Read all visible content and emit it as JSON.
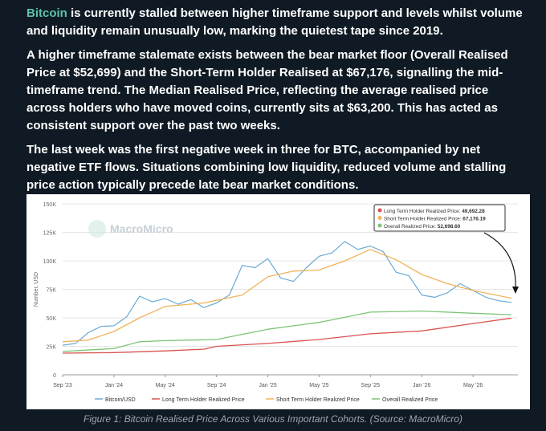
{
  "article": {
    "p1_link": "Bitcoin",
    "p1_rest": " is currently stalled between higher timeframe support and levels whilst volume and liquidity remain unusually low, marking the quietest tape since 2019.",
    "p2": "A higher timeframe stalemate exists between the bear market floor (Overall Realised Price at $52,699) and the Short-Term Holder Realised at $67,176, signalling the mid-timeframe trend. The Median Realised Price, reflecting the average realised price across holders who have moved coins, currently sits at $63,200. This has acted as consistent support over the past two weeks.",
    "p3": "The last week was the first negative week in three for BTC, accompanied by net negative ETF flows. Situations combining low liquidity, reduced volume and stalling price action typically precede late bear market conditions."
  },
  "caption": "Figure 1: Bitcoin Realised Price Across Various Important Cohorts. (Source: MacroMicro)",
  "watermark": "MacroMicro",
  "colors": {
    "background": "#0f1a24",
    "link": "#5dc2a9",
    "btc": "#6aaad4",
    "lth": "#d9534f",
    "sth": "#f0b35a",
    "overall": "#7cc576"
  },
  "chart_data": {
    "type": "line",
    "ylabel": "Number, USD",
    "ylim": [
      0,
      150000
    ],
    "y_ticks": [
      "0",
      "25K",
      "50K",
      "75K",
      "100K",
      "125K",
      "150K"
    ],
    "x_ticks": [
      "Sep '23",
      "Jan '24",
      "May '24",
      "Sep '24",
      "Jan '25",
      "May '25",
      "Sep '25",
      "Jan '26",
      "May '26"
    ],
    "x_tick_dates": [
      "2023-09",
      "2024-01",
      "2024-05",
      "2024-09",
      "2025-01",
      "2025-05",
      "2025-09",
      "2026-01",
      "2026-05"
    ],
    "grid": true,
    "legend": "bottom",
    "tooltip": [
      {
        "label": "Long Term Holder Realized Price: ",
        "value": "49,692.28",
        "color": "#d9534f"
      },
      {
        "label": "Short Term Holder Realized Price: ",
        "value": "67,176.19",
        "color": "#f0b35a"
      },
      {
        "label": "Overall Realized Price: ",
        "value": "52,698.60",
        "color": "#7cc576"
      }
    ],
    "series": [
      {
        "name": "Bitcoin/USD",
        "color": "#6aaad4",
        "points": [
          [
            "2023-09",
            26000
          ],
          [
            "2023-10",
            27500
          ],
          [
            "2023-11",
            37000
          ],
          [
            "2023-12",
            42500
          ],
          [
            "2024-01",
            43000
          ],
          [
            "2024-02",
            51000
          ],
          [
            "2024-03",
            69000
          ],
          [
            "2024-04",
            64000
          ],
          [
            "2024-05",
            67000
          ],
          [
            "2024-06",
            62000
          ],
          [
            "2024-07",
            66000
          ],
          [
            "2024-08",
            59000
          ],
          [
            "2024-09",
            63000
          ],
          [
            "2024-10",
            70000
          ],
          [
            "2024-11",
            96000
          ],
          [
            "2024-12",
            94000
          ],
          [
            "2025-01",
            102000
          ],
          [
            "2025-02",
            85000
          ],
          [
            "2025-03",
            82000
          ],
          [
            "2025-04",
            94000
          ],
          [
            "2025-05",
            104000
          ],
          [
            "2025-06",
            107000
          ],
          [
            "2025-07",
            117000
          ],
          [
            "2025-08",
            110000
          ],
          [
            "2025-09",
            113000
          ],
          [
            "2025-10",
            108000
          ],
          [
            "2025-11",
            90000
          ],
          [
            "2025-12",
            87000
          ],
          [
            "2026-01",
            70000
          ],
          [
            "2026-02",
            68000
          ],
          [
            "2026-03",
            72000
          ],
          [
            "2026-04",
            80000
          ],
          [
            "2026-05",
            74000
          ],
          [
            "2026-06",
            68000
          ],
          [
            "2026-07",
            65000
          ],
          [
            "2026-08",
            63500
          ]
        ]
      },
      {
        "name": "Long Term Holder Realized Price",
        "color": "#d9534f",
        "points": [
          [
            "2023-09",
            19000
          ],
          [
            "2024-01",
            19500
          ],
          [
            "2024-05",
            21000
          ],
          [
            "2024-08",
            22500
          ],
          [
            "2024-09",
            25000
          ],
          [
            "2025-01",
            27500
          ],
          [
            "2025-05",
            31000
          ],
          [
            "2025-09",
            36000
          ],
          [
            "2026-01",
            38500
          ],
          [
            "2026-05",
            45000
          ],
          [
            "2026-08",
            49692.28
          ]
        ]
      },
      {
        "name": "Short Term Holder Realized Price",
        "color": "#f0b35a",
        "points": [
          [
            "2023-09",
            29000
          ],
          [
            "2023-11",
            30500
          ],
          [
            "2024-01",
            38000
          ],
          [
            "2024-03",
            50000
          ],
          [
            "2024-05",
            60000
          ],
          [
            "2024-08",
            63000
          ],
          [
            "2024-11",
            70000
          ],
          [
            "2025-01",
            86000
          ],
          [
            "2025-03",
            91000
          ],
          [
            "2025-05",
            92000
          ],
          [
            "2025-07",
            100000
          ],
          [
            "2025-09",
            110000
          ],
          [
            "2025-11",
            101000
          ],
          [
            "2026-01",
            88000
          ],
          [
            "2026-03",
            80000
          ],
          [
            "2026-05",
            74000
          ],
          [
            "2026-08",
            67176.19
          ]
        ]
      },
      {
        "name": "Overall Realized Price",
        "color": "#7cc576",
        "points": [
          [
            "2023-09",
            20500
          ],
          [
            "2024-01",
            23000
          ],
          [
            "2024-03",
            29000
          ],
          [
            "2024-05",
            30000
          ],
          [
            "2024-09",
            31000
          ],
          [
            "2025-01",
            40000
          ],
          [
            "2025-05",
            46000
          ],
          [
            "2025-09",
            55000
          ],
          [
            "2026-01",
            56000
          ],
          [
            "2026-05",
            54000
          ],
          [
            "2026-08",
            52698.6
          ]
        ]
      }
    ]
  }
}
